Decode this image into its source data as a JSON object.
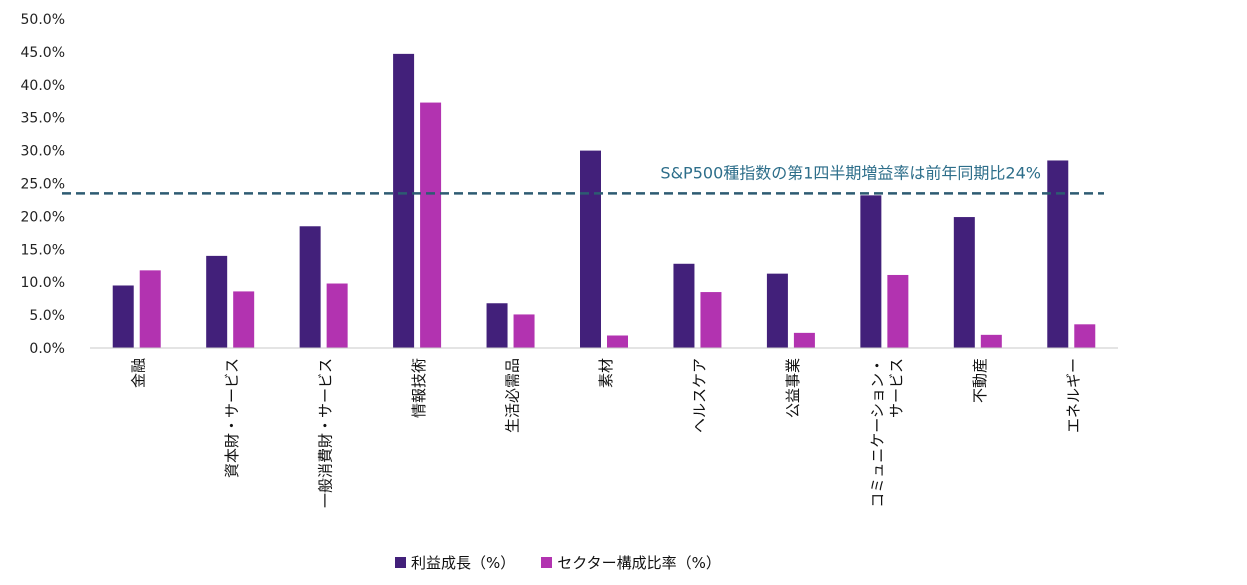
{
  "chart_data": {
    "type": "bar",
    "categories": [
      "金融",
      "資本財・サービス",
      "一般消費財・サービス",
      "情報技術",
      "生活必需品",
      "素材",
      "ヘルスケア",
      "公益事業",
      "コミュニケーション・サービス",
      "不動産",
      "エネルギー"
    ],
    "series": [
      {
        "name": "利益成長（%）",
        "color": "#42207a",
        "values": [
          9.5,
          14.0,
          18.5,
          44.7,
          6.8,
          30.0,
          12.8,
          11.3,
          23.2,
          19.9,
          28.5
        ]
      },
      {
        "name": "セクター構成比率（%）",
        "color": "#b233b0",
        "values": [
          11.8,
          8.6,
          9.8,
          37.3,
          5.1,
          1.9,
          8.5,
          2.3,
          11.1,
          2.0,
          3.6
        ]
      }
    ],
    "ylim": [
      0,
      50
    ],
    "ytick_labels": [
      "0.0%",
      "5.0%",
      "10.0%",
      "15.0%",
      "20.0%",
      "25.0%",
      "30.0%",
      "35.0%",
      "40.0%",
      "45.0%",
      "50.0%"
    ],
    "grid": false,
    "legend_position": "bottom",
    "reference_line": {
      "value": 23.5,
      "style": "dashed",
      "color": "#2d5b72"
    },
    "annotation": "S&P500種指数の第1四半期増益率は前年同期比24%",
    "annotation_color": "#2d6e8a"
  }
}
